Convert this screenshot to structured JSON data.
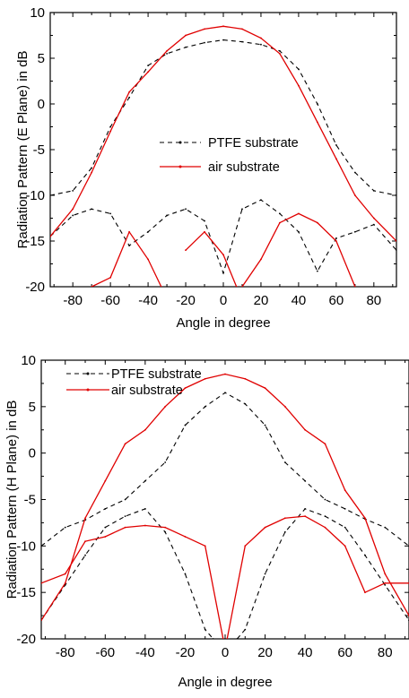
{
  "chart_data": [
    {
      "type": "line",
      "xlabel": "Angle in degree",
      "ylabel": "Radiation Pattern (E Plane) in dB",
      "xlim": [
        -92,
        92
      ],
      "ylim": [
        -20,
        10
      ],
      "xticks": [
        -80,
        -60,
        -40,
        -20,
        0,
        20,
        40,
        60,
        80
      ],
      "yticks": [
        10,
        5,
        0,
        -5,
        -10,
        -15,
        -20
      ],
      "legend_position": "center-right",
      "grid": false,
      "series": [
        {
          "name": "PTFE substrate",
          "style": "dashed",
          "color": "#000000",
          "segments": [
            {
              "x": [
                -92,
                -80,
                -70,
                -60,
                -50,
                -40,
                -30,
                -20,
                -10,
                0,
                10,
                20,
                30,
                40,
                50,
                60,
                70,
                80,
                92
              ],
              "y": [
                -10,
                -9.5,
                -7,
                -2.5,
                0.7,
                4.2,
                5.5,
                6.2,
                6.7,
                7,
                6.8,
                6.5,
                5.8,
                3.8,
                0,
                -4.5,
                -7.5,
                -9.5,
                -10
              ]
            },
            {
              "x": [
                -92,
                -80,
                -70,
                -60,
                -50,
                -40,
                -30,
                -20,
                -10,
                0,
                10,
                20,
                30,
                40,
                50,
                60,
                70,
                80,
                92
              ],
              "y": [
                -14.5,
                -12.2,
                -11.5,
                -12,
                -15.5,
                -14,
                -12.2,
                -11.5,
                -12.8,
                -18.5,
                -11.5,
                -10.5,
                -12,
                -14,
                -18.3,
                -14.7,
                -14,
                -13.2,
                -16
              ]
            }
          ]
        },
        {
          "name": "air substrate",
          "style": "solid",
          "color": "#e00000",
          "segments": [
            {
              "x": [
                -92,
                -80,
                -70,
                -60,
                -50,
                -40,
                -30,
                -20,
                -10,
                0,
                10,
                20,
                30,
                40,
                50,
                60,
                70,
                80,
                92
              ],
              "y": [
                -14.5,
                -11.5,
                -7.5,
                -3,
                1.3,
                3.5,
                5.8,
                7.5,
                8.2,
                8.5,
                8.2,
                7.2,
                5.5,
                2,
                -2,
                -6,
                -10,
                -12.5,
                -15
              ]
            },
            {
              "x": [
                -70,
                -60,
                -50,
                -40,
                -33
              ],
              "y": [
                -20,
                -19,
                -14,
                -17,
                -20
              ]
            },
            {
              "x": [
                -20,
                -10,
                0,
                7
              ],
              "y": [
                -16,
                -14,
                -16.5,
                -20
              ]
            },
            {
              "x": [
                10,
                20,
                30,
                40,
                50,
                60,
                70
              ],
              "y": [
                -20,
                -17,
                -13,
                -12,
                -13,
                -15,
                -20
              ]
            }
          ]
        }
      ]
    },
    {
      "type": "line",
      "xlabel": "Angle in degree",
      "ylabel": "Radiation Pattern (H Plane) in dB",
      "xlim": [
        -92,
        92
      ],
      "ylim": [
        -20,
        10
      ],
      "xticks": [
        -80,
        -60,
        -40,
        -20,
        0,
        20,
        40,
        60,
        80
      ],
      "yticks": [
        10,
        5,
        0,
        -5,
        -10,
        -15,
        -20
      ],
      "legend_position": "top-left",
      "grid": false,
      "series": [
        {
          "name": "PTFE substrate",
          "style": "dashed",
          "color": "#000000",
          "segments": [
            {
              "x": [
                -92,
                -80,
                -70,
                -60,
                -50,
                -40,
                -30,
                -20,
                -10,
                0,
                10,
                20,
                30,
                40,
                50,
                60,
                70,
                80,
                92
              ],
              "y": [
                -10,
                -8,
                -7.2,
                -6,
                -5,
                -3,
                -1,
                3,
                5,
                6.5,
                5.3,
                3,
                -1,
                -3,
                -5,
                -6,
                -7.1,
                -8,
                -10
              ]
            },
            {
              "x": [
                -92,
                -80,
                -70,
                -60,
                -50,
                -40,
                -30,
                -20,
                -10,
                -6
              ],
              "y": [
                -18,
                -14.2,
                -11,
                -8,
                -6.8,
                -6,
                -8.5,
                -13,
                -19,
                -20
              ]
            },
            {
              "x": [
                6,
                10,
                20,
                30,
                40,
                50,
                60,
                70,
                80,
                92
              ],
              "y": [
                -20,
                -19,
                -13,
                -8.5,
                -6,
                -6.8,
                -8,
                -11,
                -14.2,
                -18
              ]
            }
          ]
        },
        {
          "name": "air substrate",
          "style": "solid",
          "color": "#e00000",
          "segments": [
            {
              "x": [
                -92,
                -80,
                -70,
                -60,
                -50,
                -40,
                -30,
                -20,
                -10,
                0,
                10,
                20,
                30,
                40,
                50,
                60,
                70,
                80,
                92
              ],
              "y": [
                -18,
                -14,
                -7,
                -3,
                1,
                2.5,
                5,
                7,
                8,
                8.5,
                8,
                7,
                5,
                2.5,
                1,
                -4,
                -7,
                -13,
                -17.5
              ]
            },
            {
              "x": [
                -92,
                -80,
                -70,
                -60,
                -50,
                -40,
                -30,
                -20,
                -10,
                -1
              ],
              "y": [
                -14,
                -13,
                -9.5,
                -9,
                -8,
                -7.8,
                -8,
                -9,
                -10,
                -20
              ]
            },
            {
              "x": [
                1,
                10,
                20,
                30,
                40,
                50,
                60,
                70,
                80,
                92
              ],
              "y": [
                -20,
                -10,
                -8,
                -7,
                -6.8,
                -8,
                -10,
                -15,
                -14,
                -14
              ]
            }
          ]
        }
      ]
    }
  ]
}
